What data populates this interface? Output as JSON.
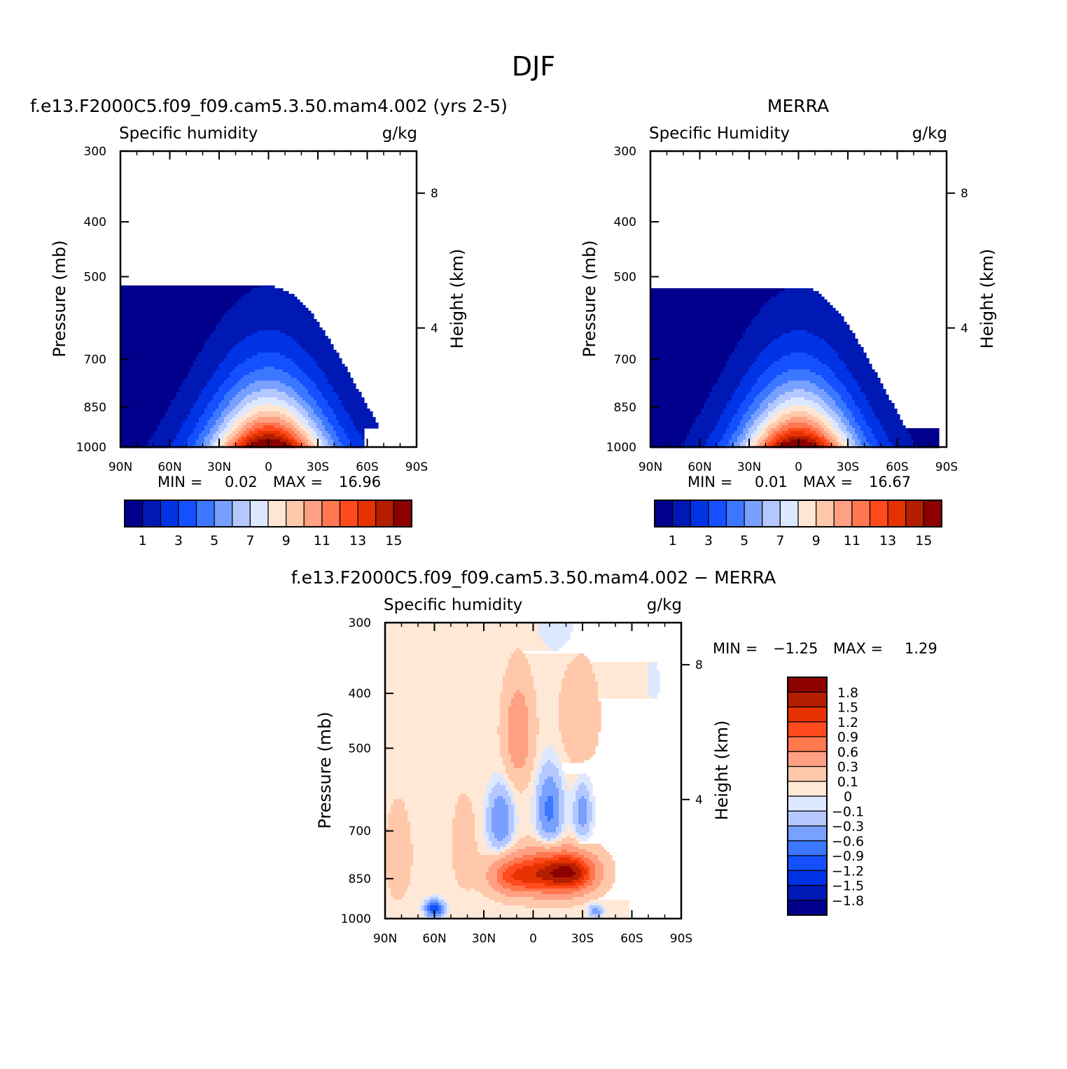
{
  "page_title": "DJF",
  "colors": {
    "absolute": [
      "#00008c",
      "#0019b4",
      "#0032e6",
      "#1450ff",
      "#3c78ff",
      "#78a0ff",
      "#b4c8ff",
      "#dce8ff",
      "#ffe6d2",
      "#ffc8aa",
      "#ffa082",
      "#ff7850",
      "#ff4b1e",
      "#e63200",
      "#b41e00",
      "#8c0000"
    ],
    "difference": [
      "#00008c",
      "#0019b4",
      "#0032e6",
      "#1450ff",
      "#3c78ff",
      "#78a0ff",
      "#b4c8ff",
      "#dce8ff",
      "#ffe8d6",
      "#ffc8aa",
      "#ffa082",
      "#ff7850",
      "#ff4b1e",
      "#e63200",
      "#b41e00",
      "#8c0000"
    ]
  },
  "chart_data": [
    {
      "id": "model",
      "type": "contour",
      "title": "f.e13.F2000C5.f09_f09.cam5.3.50.mam4.002 (yrs 2-5)",
      "left_string": "Specific humidity",
      "right_string": "g/kg",
      "ylabel": "Pressure (mb)",
      "ylabel_right": "Height (km)",
      "x_ticks": [
        "90N",
        "60N",
        "30N",
        "0",
        "30S",
        "60S",
        "90S"
      ],
      "xlim": [
        90,
        -90
      ],
      "y_ticks": [
        "300",
        "400",
        "500",
        "700",
        "850",
        "1000"
      ],
      "y_tick_values": [
        300,
        400,
        500,
        700,
        850,
        1000
      ],
      "ylim": [
        1000,
        300
      ],
      "y_scale": "log-pressure",
      "right_ticks": [
        "8",
        "4"
      ],
      "min_label": "MIN =",
      "min_value": "0.02",
      "max_label": "MAX =",
      "max_value": "16.96",
      "levels": [
        1,
        2,
        3,
        4,
        5,
        6,
        7,
        8,
        9,
        10,
        11,
        12,
        13,
        14,
        15
      ],
      "colorbar_labels": [
        "1",
        "3",
        "5",
        "7",
        "9",
        "11",
        "13",
        "15"
      ],
      "field": {
        "ridge_lat": 0,
        "ridge_width": 30,
        "peak": 16.96,
        "top_fall_pressure": 380,
        "masked_south_surface_from": -58
      }
    },
    {
      "id": "obs",
      "type": "contour",
      "title": "MERRA",
      "left_string": "Specific Humidity",
      "right_string": "g/kg",
      "ylabel": "Pressure (mb)",
      "ylabel_right": "Height (km)",
      "x_ticks": [
        "90N",
        "60N",
        "30N",
        "0",
        "30S",
        "60S",
        "90S"
      ],
      "xlim": [
        90,
        -90
      ],
      "y_ticks": [
        "300",
        "400",
        "500",
        "700",
        "850",
        "1000"
      ],
      "y_tick_values": [
        300,
        400,
        500,
        700,
        850,
        1000
      ],
      "ylim": [
        1000,
        300
      ],
      "y_scale": "log-pressure",
      "right_ticks": [
        "8",
        "4"
      ],
      "min_label": "MIN =",
      "min_value": "0.01",
      "max_label": "MAX =",
      "max_value": "16.67",
      "levels": [
        1,
        2,
        3,
        4,
        5,
        6,
        7,
        8,
        9,
        10,
        11,
        12,
        13,
        14,
        15
      ],
      "colorbar_labels": [
        "1",
        "3",
        "5",
        "7",
        "9",
        "11",
        "13",
        "15"
      ],
      "field": {
        "ridge_lat": 0,
        "ridge_width": 29,
        "peak": 16.67,
        "top_fall_pressure": 385,
        "masked_south_surface_from": -85
      }
    },
    {
      "id": "diff",
      "type": "contour",
      "title": "f.e13.F2000C5.f09_f09.cam5.3.50.mam4.002 − MERRA",
      "left_string": "Specific humidity",
      "right_string": "g/kg",
      "ylabel": "Pressure (mb)",
      "ylabel_right": "Height (km)",
      "x_ticks": [
        "90N",
        "60N",
        "30N",
        "0",
        "30S",
        "60S",
        "90S"
      ],
      "xlim": [
        90,
        -90
      ],
      "y_ticks": [
        "300",
        "400",
        "500",
        "700",
        "850",
        "1000"
      ],
      "y_tick_values": [
        300,
        400,
        500,
        700,
        850,
        1000
      ],
      "ylim": [
        1000,
        300
      ],
      "y_scale": "log-pressure",
      "right_ticks": [
        "8",
        "4"
      ],
      "min_label": "MIN =",
      "min_value": "−1.25",
      "max_label": "MAX =",
      "max_value": "1.29",
      "levels": [
        -1.8,
        -1.5,
        -1.2,
        -0.9,
        -0.6,
        -0.3,
        -0.1,
        0,
        0.1,
        0.3,
        0.6,
        0.9,
        1.2,
        1.5,
        1.8
      ],
      "colorbar_labels": [
        "1.8",
        "1.5",
        "1.2",
        "0.9",
        "0.6",
        "0.3",
        "0.1",
        "0",
        "−0.1",
        "−0.3",
        "−0.6",
        "−0.9",
        "−1.2",
        "−1.5",
        "−1.8"
      ],
      "field": {
        "features": [
          {
            "lat": -10,
            "p": 830,
            "amp": 1.29,
            "wlat": 18,
            "wp": 70
          },
          {
            "lat": -25,
            "p": 830,
            "amp": 1.1,
            "wlat": 14,
            "wp": 60
          },
          {
            "lat": 12,
            "p": 840,
            "amp": 0.9,
            "wlat": 14,
            "wp": 60
          },
          {
            "lat": 9,
            "p": 470,
            "amp": 0.5,
            "wlat": 8,
            "wp": 90
          },
          {
            "lat": -28,
            "p": 440,
            "amp": 0.25,
            "wlat": 10,
            "wp": 80
          },
          {
            "lat": 20,
            "p": 670,
            "amp": -0.65,
            "wlat": 7,
            "wp": 80
          },
          {
            "lat": -10,
            "p": 640,
            "amp": -0.75,
            "wlat": 7,
            "wp": 90
          },
          {
            "lat": -30,
            "p": 650,
            "amp": -0.5,
            "wlat": 5,
            "wp": 70
          },
          {
            "lat": 60,
            "p": 960,
            "amp": -1.25,
            "wlat": 5,
            "wp": 30
          },
          {
            "lat": -38,
            "p": 970,
            "amp": -0.5,
            "wlat": 4,
            "wp": 25
          },
          {
            "lat": -14,
            "p": 305,
            "amp": -0.15,
            "wlat": 10,
            "wp": 30
          },
          {
            "lat": -73,
            "p": 380,
            "amp": -0.12,
            "wlat": 4,
            "wp": 30
          },
          {
            "lat": 82,
            "p": 770,
            "amp": 0.15,
            "wlat": 8,
            "wp": 150
          },
          {
            "lat": 42,
            "p": 740,
            "amp": 0.12,
            "wlat": 8,
            "wp": 150
          }
        ],
        "background": 0.05,
        "masked_south_surface_from": -58
      }
    }
  ]
}
